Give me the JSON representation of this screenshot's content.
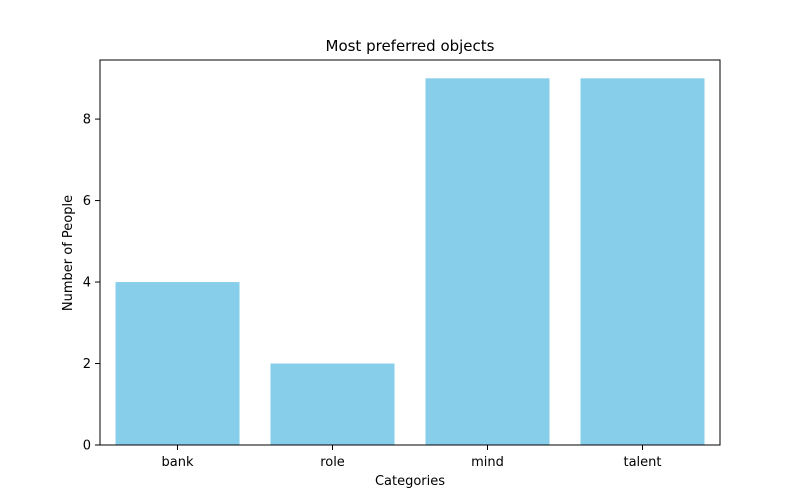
{
  "chart_data": {
    "type": "bar",
    "title": "Most preferred objects",
    "xlabel": "Categories",
    "ylabel": "Number of People",
    "categories": [
      "bank",
      "role",
      "mind",
      "talent"
    ],
    "values": [
      4,
      2,
      9,
      9
    ],
    "ylim": [
      0,
      9.45
    ],
    "yticks": [
      0,
      2,
      4,
      6,
      8
    ],
    "grid": false,
    "colors": {
      "bar": "#87ceeb",
      "axis": "#000000",
      "background": "#ffffff"
    }
  }
}
